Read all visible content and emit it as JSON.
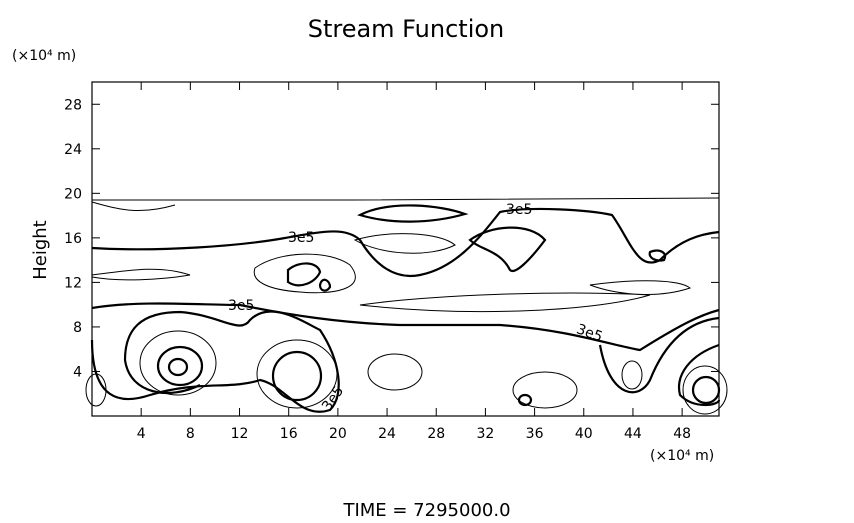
{
  "chart_data": {
    "type": "contour",
    "title": "Stream Function",
    "y_unit": "(×10⁴ m)",
    "x_unit": "(×10⁴ m)",
    "y_label": "Height",
    "footer": "TIME  =  7295000.0",
    "xlim": [
      0,
      51
    ],
    "xticks": [
      4,
      8,
      12,
      16,
      20,
      24,
      28,
      32,
      36,
      40,
      44,
      48
    ],
    "ylim": [
      0,
      30
    ],
    "yticks": [
      4,
      8,
      12,
      16,
      20,
      24,
      28
    ],
    "contour_labels": [
      "3e5",
      "3e5",
      "3e5",
      "3e5",
      "3e5"
    ]
  }
}
